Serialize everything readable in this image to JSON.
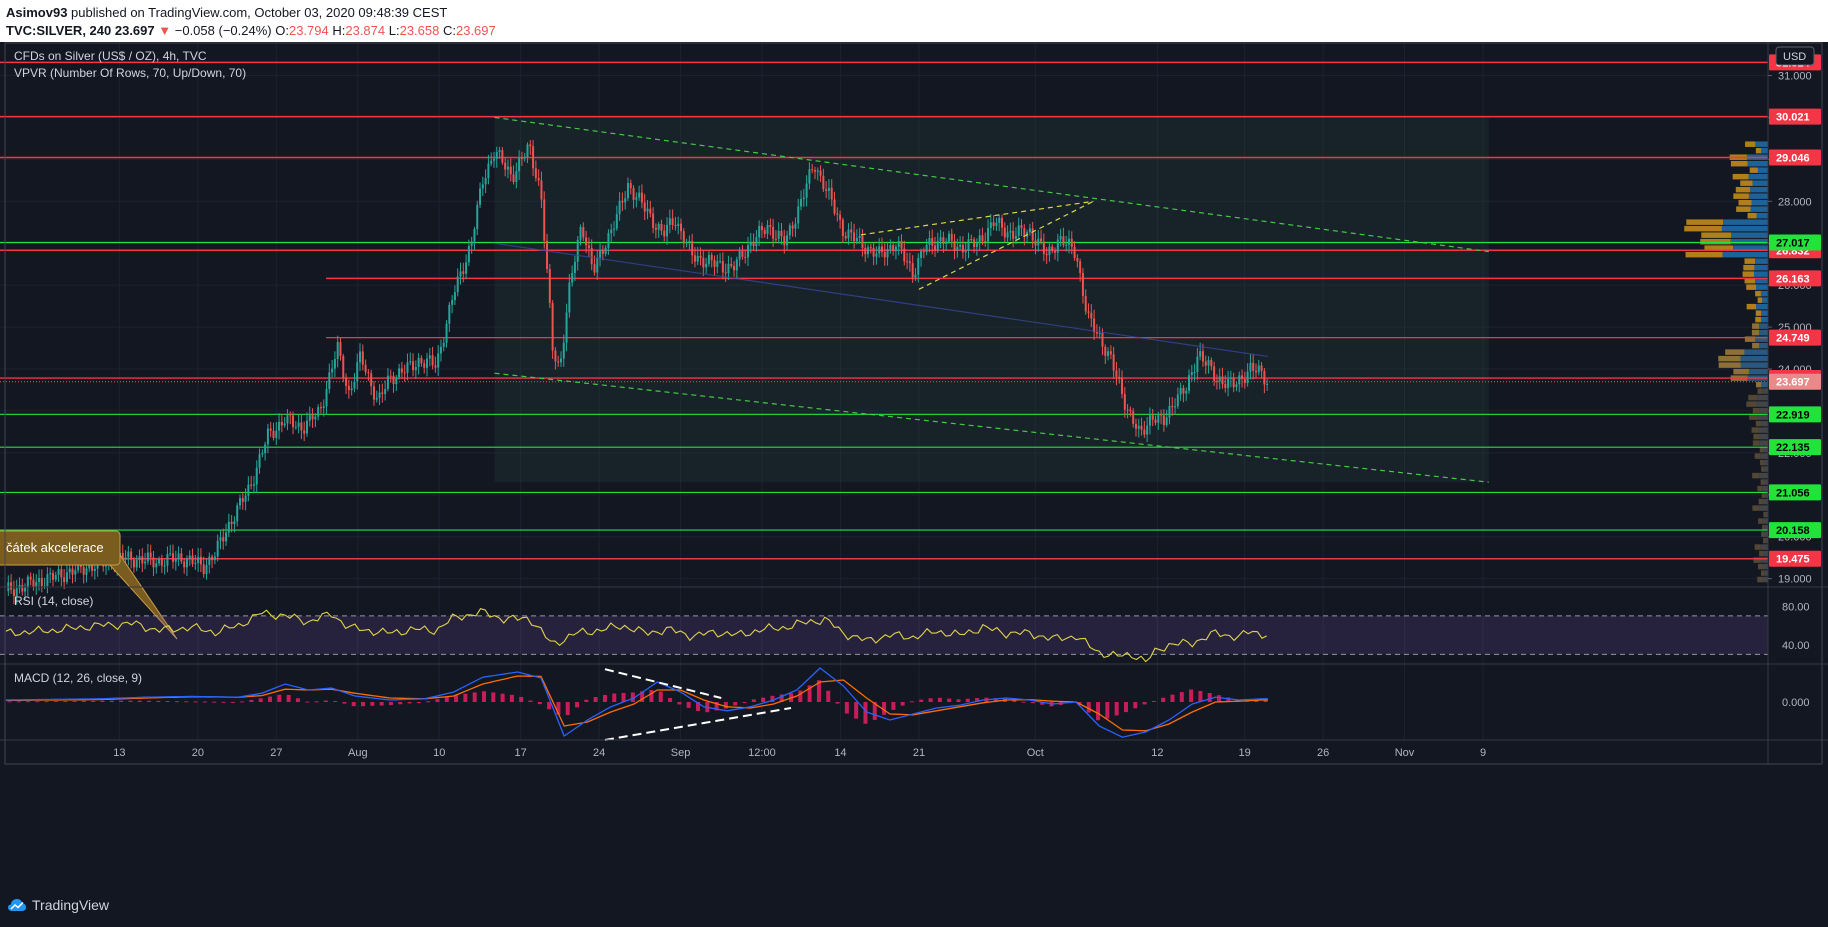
{
  "header": {
    "author": "Asimov93",
    "published": "published on TradingView.com, October 03, 2020 09:48:39 CEST",
    "symbol": "TVC:SILVER, 240",
    "last": "23.697",
    "change": "−0.058 (−0.24%)",
    "o_label": "O:",
    "o_value": "23.794",
    "h_label": "H:",
    "h_value": "23.874",
    "l_label": "L:",
    "l_value": "23.658",
    "c_label": "C:",
    "c_value": "23.697"
  },
  "legend": {
    "title": "CFDs on Silver (US$ / OZ), 4h, TVC",
    "vpvr": "VPVR (Number Of Rows, 70, Up/Down, 70)",
    "rsi": "RSI (14, close)",
    "macd": "MACD (12, 26, close, 9)"
  },
  "currency": "USD",
  "annotation": "čátek akcelerace",
  "footer": {
    "brand": "TradingView"
  },
  "colors": {
    "up": "#26a69a",
    "down": "#ef5350",
    "resistance": "#f23645",
    "support": "#22e33b",
    "rsi": "#e0d446",
    "macd": "#2962ff",
    "signal": "#ff6d00",
    "hist": "#e91e63",
    "channel": "#46c846"
  },
  "chart_data": [
    {
      "type": "candlestick",
      "title": "CFDs on Silver (US$ / OZ), 4h, TVC",
      "ylim": [
        18.8,
        31.8
      ],
      "x_ticks": [
        "13",
        "20",
        "27",
        "Aug",
        "10",
        "17",
        "24",
        "Sep",
        "12:00",
        "14",
        "21",
        "Oct",
        "12",
        "19",
        "26",
        "Nov",
        "9"
      ],
      "y_ticks": [
        "19.000",
        "20.000",
        "21.000",
        "22.000",
        "23.000",
        "24.000",
        "25.000",
        "26.000",
        "27.000",
        "28.000",
        "29.000",
        "30.000",
        "31.000"
      ],
      "resistance_levels": [
        "31.314",
        "30.021",
        "29.046",
        "26.832",
        "26.163",
        "24.749",
        "23.784",
        "19.475"
      ],
      "support_levels": [
        "27.017",
        "22.919",
        "22.135",
        "21.056",
        "20.158"
      ],
      "last_price": "23.697",
      "price_path": [
        [
          0,
          18.7
        ],
        [
          6,
          19.2
        ],
        [
          10,
          19.5
        ],
        [
          13,
          19.4
        ],
        [
          15,
          19.5
        ],
        [
          17,
          19.3
        ],
        [
          18,
          19.6
        ],
        [
          19,
          20.2
        ],
        [
          21,
          21.2
        ],
        [
          22.5,
          22.4
        ],
        [
          24,
          22.8
        ],
        [
          25.5,
          22.6
        ],
        [
          27,
          23.0
        ],
        [
          28.5,
          24.5
        ],
        [
          29.5,
          23.4
        ],
        [
          30.5,
          24.3
        ],
        [
          32,
          23.2
        ],
        [
          33,
          23.8
        ],
        [
          34.5,
          24.0
        ],
        [
          35.5,
          24.2
        ],
        [
          37,
          24.1
        ],
        [
          38.5,
          25.8
        ],
        [
          40,
          27.0
        ],
        [
          41,
          28.5
        ],
        [
          42,
          29.2
        ],
        [
          43.5,
          28.6
        ],
        [
          45,
          29.3
        ],
        [
          46,
          28.2
        ],
        [
          47,
          24.5
        ],
        [
          47.6,
          24.0
        ],
        [
          48.5,
          26.0
        ],
        [
          49.5,
          27.5
        ],
        [
          50.5,
          26.3
        ],
        [
          51.5,
          27.0
        ],
        [
          52.5,
          27.6
        ],
        [
          53.5,
          28.4
        ],
        [
          55,
          27.8
        ],
        [
          56.5,
          27.2
        ],
        [
          57.5,
          27.6
        ],
        [
          59,
          26.7
        ],
        [
          61,
          26.5
        ],
        [
          62.5,
          26.4
        ],
        [
          64,
          27.0
        ],
        [
          65.5,
          27.4
        ],
        [
          67,
          27.0
        ],
        [
          68.5,
          28.1
        ],
        [
          69.5,
          28.9
        ],
        [
          70.5,
          28.3
        ],
        [
          72,
          27.3
        ],
        [
          73.5,
          27.0
        ],
        [
          75,
          26.7
        ],
        [
          76.5,
          27.0
        ],
        [
          78,
          26.3
        ],
        [
          79,
          26.9
        ],
        [
          80.5,
          27.1
        ],
        [
          82,
          26.9
        ],
        [
          83.5,
          27.0
        ],
        [
          85,
          27.5
        ],
        [
          86.5,
          27.2
        ],
        [
          88,
          27.3
        ],
        [
          89.5,
          26.7
        ],
        [
          90.5,
          27.1
        ],
        [
          92,
          26.8
        ],
        [
          93,
          25.2
        ],
        [
          94,
          24.8
        ],
        [
          95,
          24.2
        ],
        [
          96.5,
          23.0
        ],
        [
          97.5,
          22.4
        ],
        [
          98.5,
          22.9
        ],
        [
          99.5,
          22.7
        ],
        [
          100.5,
          23.3
        ],
        [
          101.5,
          23.5
        ],
        [
          102.5,
          24.4
        ],
        [
          104,
          23.8
        ],
        [
          105.5,
          23.6
        ],
        [
          107,
          24.0
        ],
        [
          108,
          23.9
        ],
        [
          108.5,
          23.7
        ]
      ],
      "channel": {
        "upper": [
          [
            42,
            30.0
          ],
          [
            127.5,
            26.8
          ]
        ],
        "lower": [
          [
            42,
            23.9
          ],
          [
            127.5,
            21.3
          ]
        ]
      },
      "wedge": {
        "upper": [
          [
            73.5,
            27.2
          ],
          [
            93.5,
            28.0
          ]
        ],
        "lower": [
          [
            78.5,
            25.9
          ],
          [
            93.5,
            28.0
          ]
        ]
      }
    },
    {
      "type": "line",
      "title": "RSI (14, close)",
      "ylim": [
        20,
        100
      ],
      "y_ticks": [
        "80.00",
        "40.00"
      ],
      "bands": [
        70,
        30
      ],
      "series": [
        {
          "values": [
            [
              0,
              52
            ],
            [
              4,
              55
            ],
            [
              8,
              60
            ],
            [
              11,
              62
            ],
            [
              13,
              55
            ],
            [
              16,
              58
            ],
            [
              18,
              53
            ],
            [
              20,
              60
            ],
            [
              22,
              73
            ],
            [
              24,
              70
            ],
            [
              26,
              64
            ],
            [
              28,
              72
            ],
            [
              29.5,
              58
            ],
            [
              31,
              55
            ],
            [
              33,
              52
            ],
            [
              35,
              56
            ],
            [
              37,
              55
            ],
            [
              38.5,
              68
            ],
            [
              41,
              74
            ],
            [
              43,
              66
            ],
            [
              45,
              68
            ],
            [
              47,
              40
            ],
            [
              49,
              52
            ],
            [
              51,
              55
            ],
            [
              53,
              60
            ],
            [
              55,
              52
            ],
            [
              57,
              56
            ],
            [
              59,
              49
            ],
            [
              61,
              53
            ],
            [
              63,
              50
            ],
            [
              65,
              56
            ],
            [
              67,
              58
            ],
            [
              69,
              64
            ],
            [
              70.5,
              66
            ],
            [
              72,
              52
            ],
            [
              74,
              44
            ],
            [
              76,
              50
            ],
            [
              78,
              48
            ],
            [
              80,
              54
            ],
            [
              82,
              50
            ],
            [
              84,
              58
            ],
            [
              86,
              52
            ],
            [
              88,
              52
            ],
            [
              90,
              46
            ],
            [
              92,
              49
            ],
            [
              93,
              40
            ],
            [
              94,
              32
            ],
            [
              95.5,
              28
            ],
            [
              97,
              30
            ],
            [
              98,
              22
            ],
            [
              99,
              35
            ],
            [
              100,
              40
            ],
            [
              102,
              42
            ],
            [
              104,
              52
            ],
            [
              106,
              48
            ],
            [
              107,
              54
            ],
            [
              108.5,
              50
            ]
          ]
        }
      ]
    },
    {
      "type": "line",
      "title": "MACD (12, 26, close, 9)",
      "ylim": [
        -0.95,
        0.95
      ],
      "y_ticks": [
        "0.000"
      ],
      "series": [
        {
          "values": [
            [
              0,
              0.05
            ],
            [
              8,
              0.08
            ],
            [
              12,
              0.12
            ],
            [
              16,
              0.14
            ],
            [
              20,
              0.12
            ],
            [
              22,
              0.22
            ],
            [
              24,
              0.45
            ],
            [
              26,
              0.3
            ],
            [
              28,
              0.35
            ],
            [
              30,
              0.15
            ],
            [
              33,
              0.05
            ],
            [
              36,
              0.08
            ],
            [
              38.5,
              0.25
            ],
            [
              41,
              0.62
            ],
            [
              44,
              0.75
            ],
            [
              46,
              0.6
            ],
            [
              48,
              -0.85
            ],
            [
              50,
              -0.45
            ],
            [
              52,
              -0.12
            ],
            [
              54,
              0.1
            ],
            [
              56,
              0.5
            ],
            [
              58,
              0.25
            ],
            [
              60,
              -0.12
            ],
            [
              62,
              -0.22
            ],
            [
              64,
              -0.12
            ],
            [
              66,
              0.05
            ],
            [
              68,
              0.3
            ],
            [
              70,
              0.85
            ],
            [
              72,
              0.4
            ],
            [
              74,
              -0.25
            ],
            [
              76,
              -0.45
            ],
            [
              78,
              -0.3
            ],
            [
              80,
              -0.15
            ],
            [
              82,
              -0.08
            ],
            [
              84,
              0.05
            ],
            [
              86,
              0.1
            ],
            [
              88,
              0.05
            ],
            [
              90,
              -0.05
            ],
            [
              92,
              0.0
            ],
            [
              94,
              -0.6
            ],
            [
              96,
              -0.88
            ],
            [
              98,
              -0.75
            ],
            [
              100,
              -0.45
            ],
            [
              102,
              -0.05
            ],
            [
              104,
              0.12
            ],
            [
              106,
              0.05
            ],
            [
              108,
              0.08
            ]
          ]
        },
        {
          "values": [
            [
              0,
              0.04
            ],
            [
              8,
              0.06
            ],
            [
              12,
              0.1
            ],
            [
              16,
              0.13
            ],
            [
              20,
              0.12
            ],
            [
              22,
              0.16
            ],
            [
              24,
              0.32
            ],
            [
              26,
              0.3
            ],
            [
              28,
              0.32
            ],
            [
              30,
              0.22
            ],
            [
              33,
              0.1
            ],
            [
              36,
              0.08
            ],
            [
              38.5,
              0.15
            ],
            [
              41,
              0.45
            ],
            [
              44,
              0.65
            ],
            [
              46,
              0.64
            ],
            [
              48,
              -0.6
            ],
            [
              50,
              -0.5
            ],
            [
              52,
              -0.25
            ],
            [
              54,
              -0.05
            ],
            [
              56,
              0.3
            ],
            [
              58,
              0.3
            ],
            [
              60,
              0.05
            ],
            [
              62,
              -0.12
            ],
            [
              64,
              -0.15
            ],
            [
              66,
              -0.05
            ],
            [
              68,
              0.15
            ],
            [
              70,
              0.5
            ],
            [
              72,
              0.55
            ],
            [
              74,
              0.1
            ],
            [
              76,
              -0.3
            ],
            [
              78,
              -0.32
            ],
            [
              80,
              -0.22
            ],
            [
              82,
              -0.12
            ],
            [
              84,
              -0.02
            ],
            [
              86,
              0.05
            ],
            [
              88,
              0.06
            ],
            [
              90,
              0.02
            ],
            [
              92,
              0.0
            ],
            [
              94,
              -0.3
            ],
            [
              96,
              -0.7
            ],
            [
              98,
              -0.72
            ],
            [
              100,
              -0.55
            ],
            [
              102,
              -0.25
            ],
            [
              104,
              0.0
            ],
            [
              106,
              0.02
            ],
            [
              108,
              0.05
            ]
          ]
        }
      ],
      "lines": [
        [
          [
            51.5,
            0.82
          ],
          [
            61.5,
            0.1
          ]
        ],
        [
          [
            51.5,
            -0.95
          ],
          [
            67.5,
            -0.15
          ]
        ]
      ]
    }
  ]
}
